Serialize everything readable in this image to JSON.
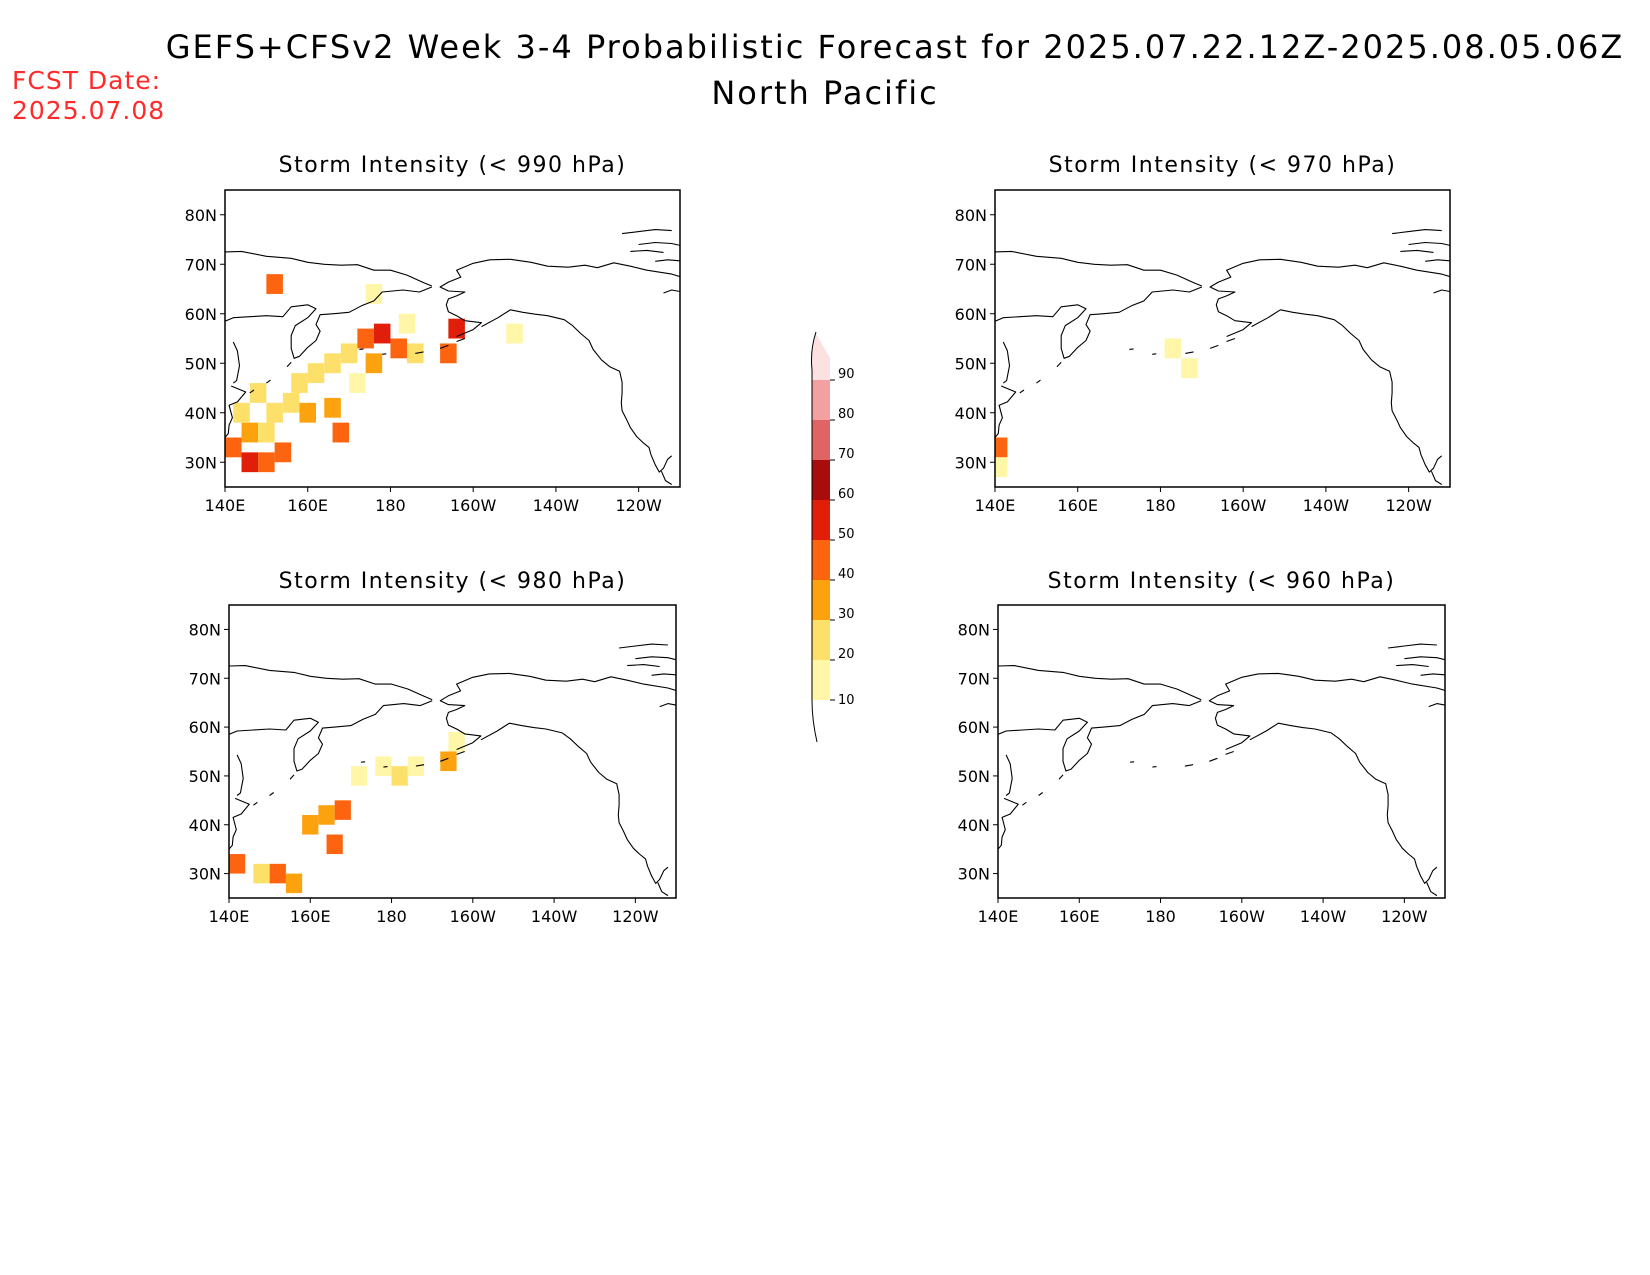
{
  "header": {
    "title": "GEFS+CFSv2 Week 3-4 Probabilistic Forecast for 2025.07.22.12Z-2025.08.05.06Z",
    "subtitle": "North Pacific",
    "fcst_label": "FCST Date:",
    "fcst_date": "2025.07.08"
  },
  "colors": {
    "10": "#fff6a8",
    "20": "#fde06a",
    "30": "#fca20e",
    "40": "#fc6410",
    "50": "#e01e0a",
    "60": "#a80c0c",
    "70": "#e06464",
    "80": "#f2a0a0",
    "90": "#fde0e0",
    "fcst_text": "#ff2a2a"
  },
  "colorbar": {
    "levels": [
      "10",
      "20",
      "30",
      "40",
      "50",
      "60",
      "70",
      "80",
      "90"
    ]
  },
  "axes": {
    "lon_labels": [
      "140E",
      "160E",
      "180",
      "160W",
      "140W",
      "120W"
    ],
    "lat_labels": [
      "80N",
      "70N",
      "60N",
      "50N",
      "40N",
      "30N"
    ]
  },
  "panels": [
    {
      "title": "Storm Intensity (< 990 hPa)",
      "cells": [
        [
          142,
          33,
          0.45
        ],
        [
          146,
          30,
          0.5
        ],
        [
          150,
          30,
          0.45
        ],
        [
          154,
          32,
          0.4
        ],
        [
          146,
          36,
          0.3
        ],
        [
          150,
          36,
          0.25
        ],
        [
          144,
          40,
          0.2
        ],
        [
          148,
          44,
          0.2
        ],
        [
          152,
          40,
          0.2
        ],
        [
          156,
          42,
          0.25
        ],
        [
          160,
          40,
          0.35
        ],
        [
          158,
          46,
          0.2
        ],
        [
          162,
          48,
          0.2
        ],
        [
          166,
          50,
          0.2
        ],
        [
          170,
          52,
          0.25
        ],
        [
          174,
          55,
          0.45
        ],
        [
          178,
          56,
          0.55
        ],
        [
          182,
          53,
          0.45
        ],
        [
          176,
          50,
          0.3
        ],
        [
          186,
          52,
          0.2
        ],
        [
          172,
          46,
          0.15
        ],
        [
          184,
          58,
          0.15
        ],
        [
          168,
          36,
          0.4
        ],
        [
          166,
          41,
          0.35
        ],
        [
          176,
          64,
          0.1
        ],
        [
          196,
          57,
          0.55
        ],
        [
          194,
          52,
          0.45
        ],
        [
          152,
          66,
          0.45
        ],
        [
          210,
          56,
          0.1
        ]
      ]
    },
    {
      "title": "Storm Intensity (< 970 hPa)",
      "cells": [
        [
          141,
          33,
          0.4
        ],
        [
          141,
          29,
          0.15
        ],
        [
          183,
          53,
          0.12
        ],
        [
          187,
          49,
          0.1
        ]
      ]
    },
    {
      "title": "Storm Intensity (< 980 hPa)",
      "cells": [
        [
          142,
          32,
          0.4
        ],
        [
          148,
          30,
          0.25
        ],
        [
          152,
          30,
          0.45
        ],
        [
          156,
          28,
          0.3
        ],
        [
          160,
          40,
          0.3
        ],
        [
          164,
          42,
          0.35
        ],
        [
          168,
          43,
          0.4
        ],
        [
          166,
          36,
          0.4
        ],
        [
          172,
          50,
          0.15
        ],
        [
          178,
          52,
          0.15
        ],
        [
          182,
          50,
          0.2
        ],
        [
          186,
          52,
          0.15
        ],
        [
          194,
          53,
          0.3
        ],
        [
          196,
          57,
          0.12
        ]
      ]
    },
    {
      "title": "Storm Intensity (< 960 hPa)",
      "cells": []
    }
  ]
}
